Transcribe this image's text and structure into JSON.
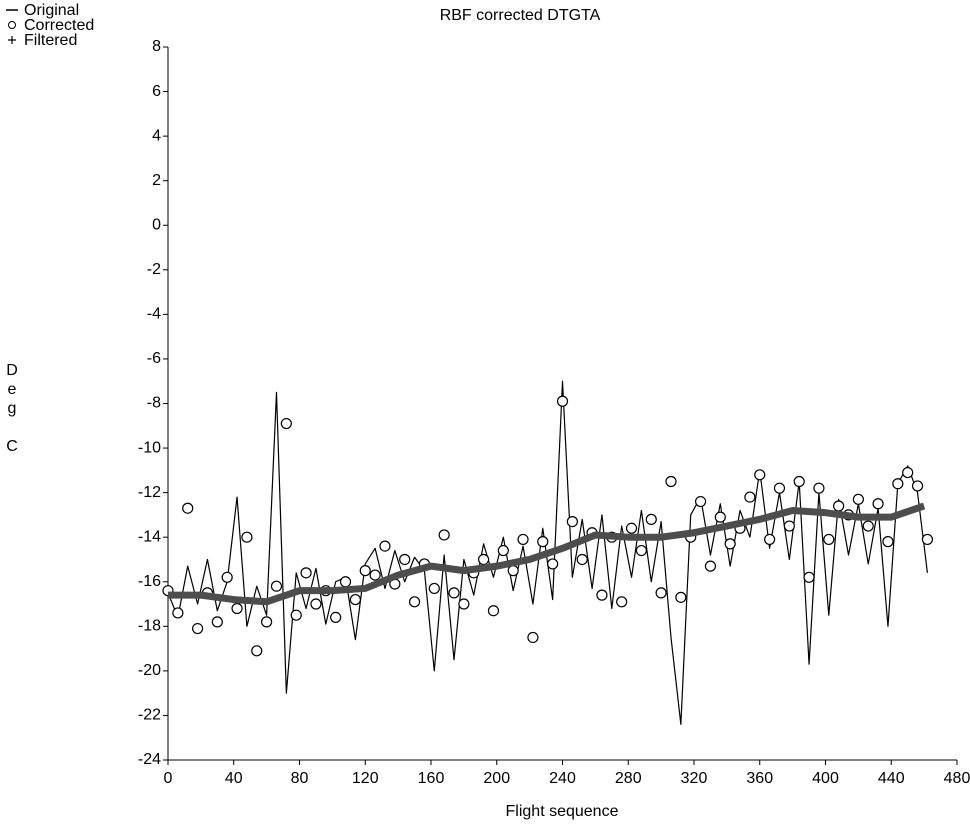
{
  "chart_data": {
    "type": "line",
    "title": "RBF corrected DTGTA",
    "x_label": "Flight sequence",
    "y_label": "Deg C",
    "xlim": [
      0,
      480
    ],
    "ylim": [
      -24,
      8
    ],
    "xticks": [
      0,
      40,
      80,
      120,
      160,
      200,
      240,
      280,
      320,
      360,
      400,
      440,
      480
    ],
    "yticks": [
      -24,
      -22,
      -20,
      -18,
      -16,
      -14,
      -12,
      -10,
      -8,
      -6,
      -4,
      -2,
      0,
      2,
      4,
      6,
      8
    ],
    "series": [
      {
        "name": "Original",
        "style": "line",
        "color": "#000000",
        "x": [
          0,
          6,
          12,
          18,
          24,
          30,
          36,
          42,
          48,
          54,
          60,
          66,
          72,
          78,
          84,
          90,
          96,
          102,
          108,
          114,
          120,
          126,
          132,
          138,
          144,
          150,
          156,
          162,
          168,
          174,
          180,
          186,
          192,
          198,
          204,
          210,
          216,
          222,
          228,
          234,
          240,
          246,
          252,
          258,
          264,
          270,
          276,
          282,
          288,
          294,
          300,
          306,
          312,
          318,
          324,
          330,
          336,
          342,
          348,
          354,
          360,
          366,
          372,
          378,
          384,
          390,
          396,
          402,
          408,
          414,
          420,
          426,
          432,
          438,
          444,
          450,
          456,
          462
        ],
        "values": [
          -16.5,
          -17.6,
          -15.3,
          -17.0,
          -15.0,
          -17.3,
          -16.0,
          -12.2,
          -18.0,
          -16.2,
          -17.5,
          -7.5,
          -21.0,
          -15.6,
          -17.2,
          -15.4,
          -17.9,
          -16.0,
          -15.8,
          -18.6,
          -15.2,
          -14.5,
          -16.3,
          -14.6,
          -16.0,
          -14.9,
          -15.5,
          -20.0,
          -14.8,
          -19.5,
          -15.0,
          -16.6,
          -14.3,
          -15.8,
          -14.0,
          -16.4,
          -14.4,
          -17.0,
          -13.6,
          -16.8,
          -7.0,
          -15.8,
          -13.2,
          -16.3,
          -13.0,
          -17.2,
          -13.5,
          -15.8,
          -12.8,
          -16.0,
          -13.3,
          -18.5,
          -22.4,
          -13.0,
          -12.2,
          -14.8,
          -12.5,
          -15.3,
          -12.8,
          -14.0,
          -11.0,
          -14.5,
          -12.0,
          -15.0,
          -11.5,
          -19.7,
          -12.0,
          -17.5,
          -12.3,
          -14.8,
          -12.5,
          -15.2,
          -12.7,
          -18.0,
          -11.6,
          -10.8,
          -12.0,
          -15.6
        ]
      },
      {
        "name": "Corrected",
        "style": "circle",
        "color": "#000000",
        "x": [
          0,
          6,
          12,
          18,
          24,
          30,
          36,
          42,
          48,
          54,
          60,
          66,
          72,
          78,
          84,
          90,
          96,
          102,
          108,
          114,
          120,
          126,
          132,
          138,
          144,
          150,
          156,
          162,
          168,
          174,
          180,
          186,
          192,
          198,
          204,
          210,
          216,
          222,
          228,
          234,
          240,
          246,
          252,
          258,
          264,
          270,
          276,
          282,
          288,
          294,
          300,
          306,
          312,
          318,
          324,
          330,
          336,
          342,
          348,
          354,
          360,
          366,
          372,
          378,
          384,
          390,
          396,
          402,
          408,
          414,
          420,
          426,
          432,
          438,
          444,
          450,
          456,
          462
        ],
        "values": [
          -16.4,
          -17.4,
          -12.7,
          -18.1,
          -16.5,
          -17.8,
          -15.8,
          -17.2,
          -14.0,
          -19.1,
          -17.8,
          -16.2,
          -8.9,
          -17.5,
          -15.6,
          -17.0,
          -16.4,
          -17.6,
          -16.0,
          -16.8,
          -15.5,
          -15.7,
          -14.4,
          -16.1,
          -15.0,
          -16.9,
          -15.2,
          -16.3,
          -13.9,
          -16.5,
          -17.0,
          -15.6,
          -15.0,
          -17.3,
          -14.6,
          -15.5,
          -14.1,
          -18.5,
          -14.2,
          -15.2,
          -7.9,
          -13.3,
          -15.0,
          -13.8,
          -16.6,
          -14.0,
          -16.9,
          -13.6,
          -14.6,
          -13.2,
          -16.5,
          -11.5,
          -16.7,
          -14.0,
          -12.4,
          -15.3,
          -13.1,
          -14.3,
          -13.6,
          -12.2,
          -11.2,
          -14.1,
          -11.8,
          -13.5,
          -11.5,
          -15.8,
          -11.8,
          -14.1,
          -12.6,
          -13.0,
          -12.3,
          -13.5,
          -12.5,
          -14.2,
          -11.6,
          -11.1,
          -11.7,
          -14.1
        ]
      },
      {
        "name": "Filtered",
        "style": "thick",
        "color": "#4d4d4d",
        "x": [
          0,
          20,
          40,
          60,
          80,
          100,
          120,
          140,
          160,
          180,
          200,
          220,
          240,
          260,
          280,
          300,
          320,
          340,
          360,
          380,
          400,
          420,
          440,
          460
        ],
        "values": [
          -16.6,
          -16.6,
          -16.8,
          -16.9,
          -16.4,
          -16.4,
          -16.3,
          -15.7,
          -15.3,
          -15.5,
          -15.3,
          -15.0,
          -14.5,
          -13.9,
          -14.0,
          -14.0,
          -13.8,
          -13.5,
          -13.2,
          -12.8,
          -12.9,
          -13.1,
          -13.1,
          -12.6
        ]
      }
    ]
  }
}
